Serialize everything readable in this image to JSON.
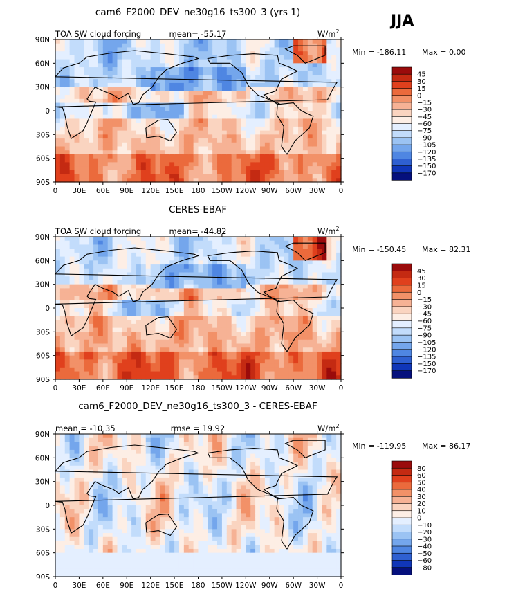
{
  "season": "JJA",
  "units": "W/m",
  "units_sup": "2",
  "chart_data": [
    {
      "type": "heatmap",
      "title": "cam6_F2000_DEV_ne30g16_ts300_3 (yrs 1)",
      "left_label": "TOA SW cloud forcing",
      "center_label": "mean= -55.17",
      "min_label": "Min = -186.11",
      "max_label": "Max =   0.00",
      "x_ticks": [
        "0",
        "30E",
        "60E",
        "90E",
        "120E",
        "150E",
        "180",
        "150W",
        "120W",
        "90W",
        "60W",
        "30W",
        "0"
      ],
      "y_ticks": [
        "90N",
        "60N",
        "30N",
        "0",
        "30S",
        "60S",
        "90S"
      ],
      "xlim": [
        0,
        360
      ],
      "ylim": [
        -90,
        90
      ],
      "levels": [
        "45",
        "30",
        "15",
        "0",
        "-15",
        "-30",
        "-45",
        "-60",
        "-75",
        "-90",
        "-105",
        "-120",
        "-135",
        "-150",
        "-170"
      ],
      "colors": [
        "#9a0b0b",
        "#c42a12",
        "#e0401d",
        "#eb6a3c",
        "#f29168",
        "#f6b295",
        "#fad4c0",
        "#fdeee5",
        "#e4efff",
        "#c2dcfb",
        "#9bc3f3",
        "#74a6ec",
        "#4f86e2",
        "#2f60d1",
        "#1036b8",
        "#05107d"
      ]
    },
    {
      "type": "heatmap",
      "title": "CERES-EBAF",
      "left_label": "TOA SW cloud forcing",
      "center_label": "mean= -44.82",
      "min_label": "Min = -150.45",
      "max_label": "Max =  82.31",
      "x_ticks": [
        "0",
        "30E",
        "60E",
        "90E",
        "120E",
        "150E",
        "180",
        "150W",
        "120W",
        "90W",
        "60W",
        "30W",
        "0"
      ],
      "y_ticks": [
        "90N",
        "60N",
        "30N",
        "0",
        "30S",
        "60S",
        "90S"
      ],
      "xlim": [
        0,
        360
      ],
      "ylim": [
        -90,
        90
      ],
      "levels": [
        "45",
        "30",
        "15",
        "0",
        "-15",
        "-30",
        "-45",
        "-60",
        "-75",
        "-90",
        "-105",
        "-120",
        "-135",
        "-150",
        "-170"
      ],
      "colors": [
        "#9a0b0b",
        "#c42a12",
        "#e0401d",
        "#eb6a3c",
        "#f29168",
        "#f6b295",
        "#fad4c0",
        "#fdeee5",
        "#e4efff",
        "#c2dcfb",
        "#9bc3f3",
        "#74a6ec",
        "#4f86e2",
        "#2f60d1",
        "#1036b8",
        "#05107d"
      ]
    },
    {
      "type": "heatmap",
      "title": "cam6_F2000_DEV_ne30g16_ts300_3 - CERES-EBAF",
      "left_label": "mean = -10.35",
      "center_label": "rmse =  19.92",
      "min_label": "Min = -119.95",
      "max_label": "Max =  86.17",
      "x_ticks": [
        "0",
        "30E",
        "60E",
        "90E",
        "120E",
        "150E",
        "180",
        "150W",
        "120W",
        "90W",
        "60W",
        "30W",
        "0"
      ],
      "y_ticks": [
        "90N",
        "60N",
        "30N",
        "0",
        "30S",
        "60S",
        "90S"
      ],
      "xlim": [
        0,
        360
      ],
      "ylim": [
        -90,
        90
      ],
      "levels": [
        "80",
        "60",
        "50",
        "40",
        "30",
        "20",
        "10",
        "0",
        "-10",
        "-20",
        "-30",
        "-40",
        "-50",
        "-60",
        "-80"
      ],
      "colors": [
        "#9a0b0b",
        "#c42a12",
        "#e0401d",
        "#eb6a3c",
        "#f29168",
        "#f6b295",
        "#fad4c0",
        "#fdeee5",
        "#e4efff",
        "#c2dcfb",
        "#9bc3f3",
        "#74a6ec",
        "#4f86e2",
        "#2f60d1",
        "#1036b8",
        "#05107d"
      ]
    }
  ]
}
